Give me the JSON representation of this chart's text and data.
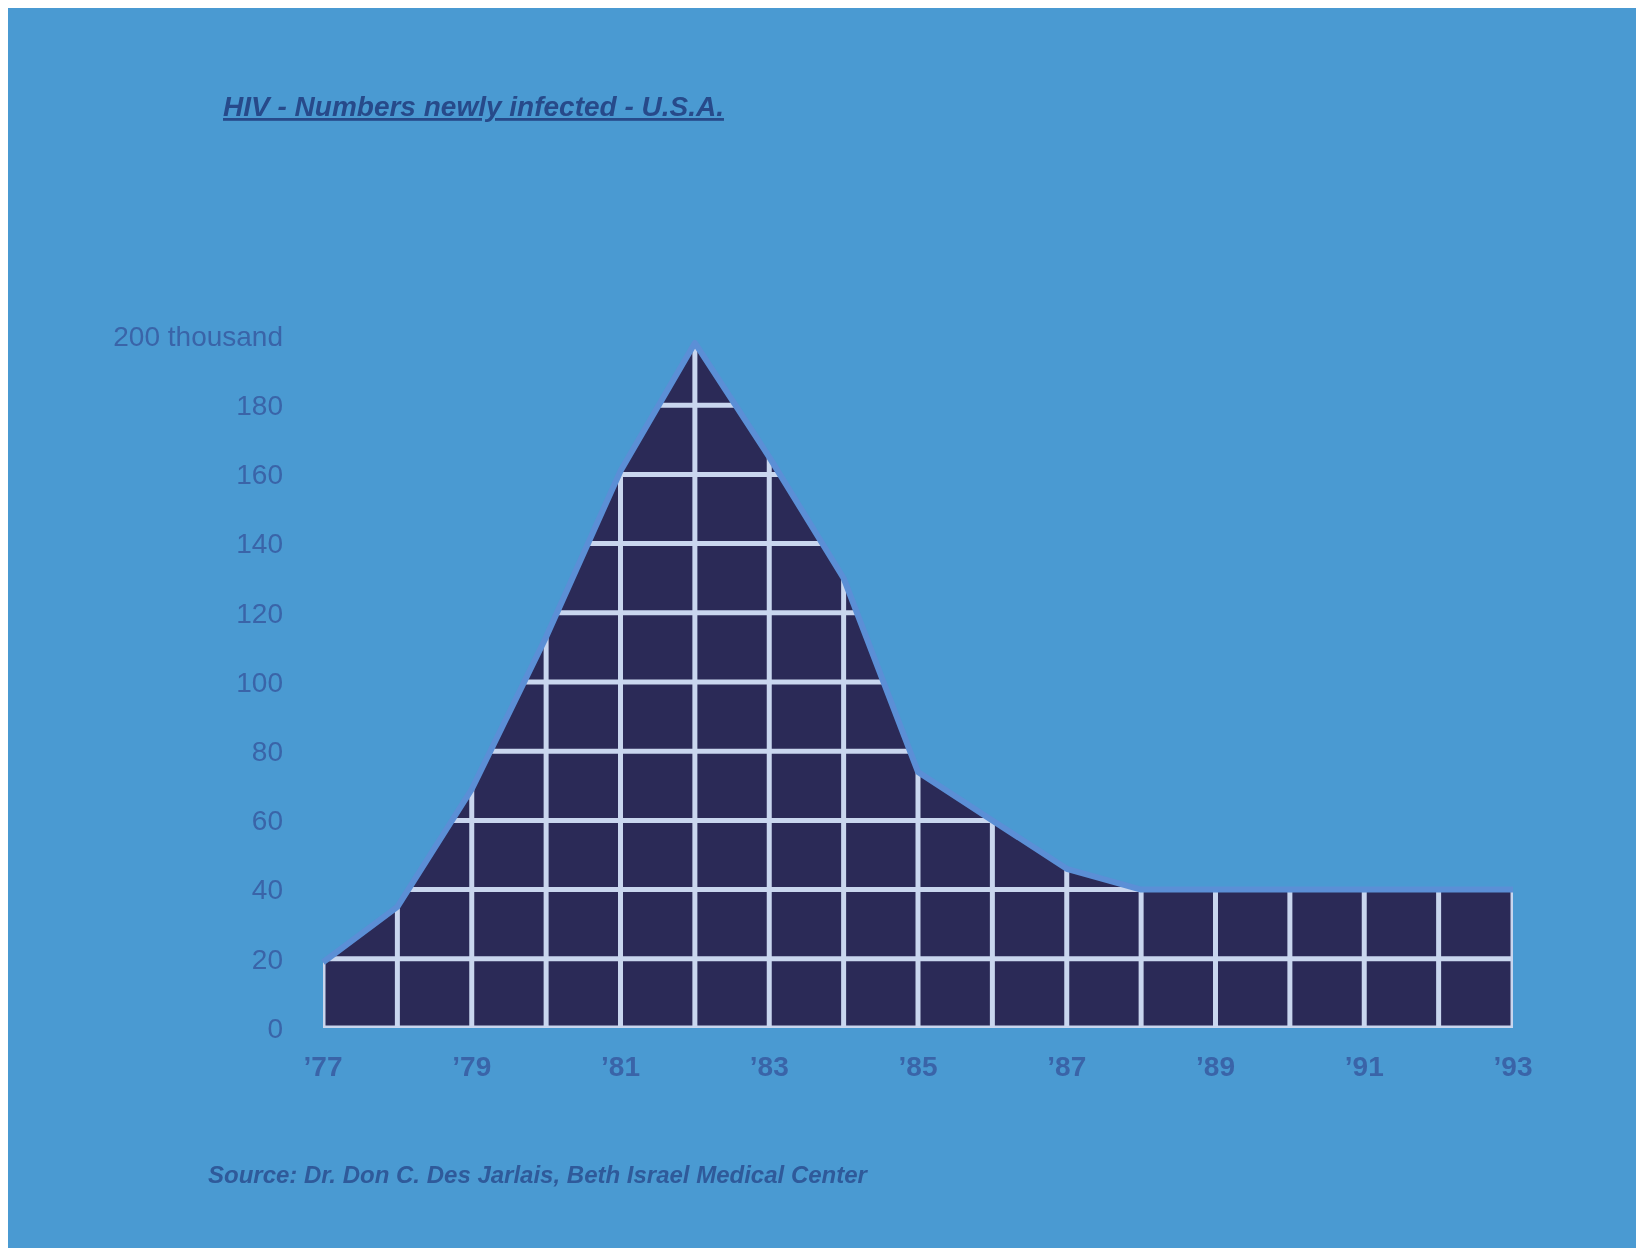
{
  "chart_data": {
    "type": "area",
    "title": "HIV - Numbers newly infected - U.S.A.",
    "x": [
      1977,
      1978,
      1979,
      1980,
      1981,
      1982,
      1983,
      1984,
      1985,
      1986,
      1987,
      1988,
      1989,
      1990,
      1991,
      1992,
      1993
    ],
    "series": [
      {
        "color": "#2b2a57",
        "values": [
          19,
          35,
          69,
          113,
          161,
          198,
          165,
          130,
          74,
          60,
          46,
          40,
          40,
          40,
          40,
          40,
          40
        ]
      }
    ],
    "xlim": [
      1977,
      1993
    ],
    "xticks": [
      {
        "value": 1977,
        "label": "’77"
      },
      {
        "value": 1978,
        "label": null
      },
      {
        "value": 1979,
        "label": "’79"
      },
      {
        "value": 1980,
        "label": null
      },
      {
        "value": 1981,
        "label": "’81"
      },
      {
        "value": 1982,
        "label": null
      },
      {
        "value": 1983,
        "label": "’83"
      },
      {
        "value": 1984,
        "label": null
      },
      {
        "value": 1985,
        "label": "’85"
      },
      {
        "value": 1986,
        "label": null
      },
      {
        "value": 1987,
        "label": "’87"
      },
      {
        "value": 1988,
        "label": null
      },
      {
        "value": 1989,
        "label": "’89"
      },
      {
        "value": 1990,
        "label": null
      },
      {
        "value": 1991,
        "label": "’91"
      },
      {
        "value": 1992,
        "label": null
      },
      {
        "value": 1993,
        "label": "’93"
      }
    ],
    "ylim": [
      0,
      200
    ],
    "yticks": [
      0,
      20,
      40,
      60,
      80,
      100,
      120,
      140,
      160,
      180,
      {
        "value": 200,
        "label": "200 thousand"
      }
    ],
    "grid": true,
    "annotations": [
      "Source: Dr. Don C. Des Jarlais, Beth Israel Medical Center"
    ]
  }
}
